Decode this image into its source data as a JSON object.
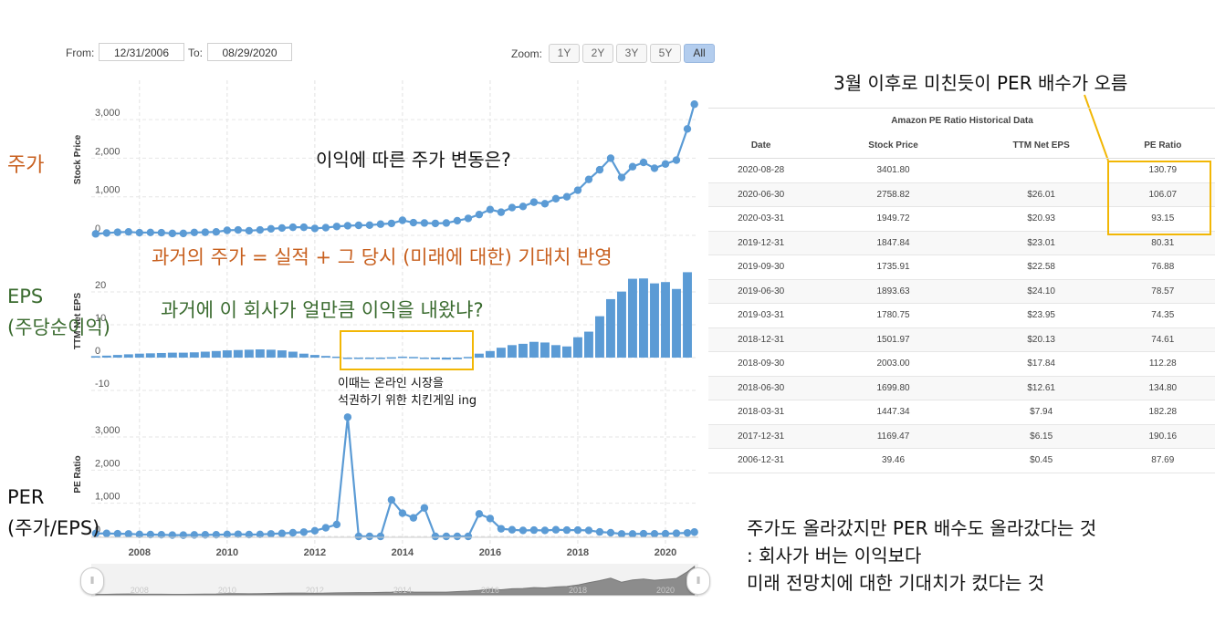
{
  "toolbar": {
    "from_label": "From:",
    "from_value": "12/31/2006",
    "to_label": "To:",
    "to_value": "08/29/2020",
    "zoom_label": "Zoom:",
    "zoom_buttons": [
      "1Y",
      "2Y",
      "3Y",
      "5Y",
      "All"
    ],
    "zoom_active": "All"
  },
  "annotations": {
    "left_price": "주가",
    "left_eps_1": "EPS",
    "left_eps_2": "(주당순이익)",
    "left_per_1": "PER",
    "left_per_2": "(주가/EPS)",
    "price_question": "이익에 따른 주가 변동은?",
    "past_price": "과거의 주가 = 실적 + 그 당시 (미래에 대한) 기대치 반영",
    "eps_question": "과거에 이 회사가 얼만큼 이익을 내왔냐?",
    "eps_note_1": "이때는 온라인 시장을",
    "eps_note_2": "석권하기 위한 치킨게임 ing",
    "per_note": "3월 이후로 미친듯이 PER 배수가 오름",
    "conclusion_1": "주가도 올라갔지만 PER 배수도 올라갔다는 것",
    "conclusion_2": ": 회사가 버는 이익보다",
    "conclusion_3": "미래 전망치에 대한 기대치가 컸다는 것"
  },
  "colors": {
    "series": "#5b9bd5",
    "highlight": "#f2b705",
    "annot_orange": "#c8601f",
    "annot_green": "#3a6b2f"
  },
  "table": {
    "title": "Amazon PE Ratio Historical Data",
    "columns": [
      "Date",
      "Stock Price",
      "TTM Net EPS",
      "PE Ratio"
    ],
    "rows": [
      [
        "2020-08-28",
        "3401.80",
        "",
        "130.79"
      ],
      [
        "2020-06-30",
        "2758.82",
        "$26.01",
        "106.07"
      ],
      [
        "2020-03-31",
        "1949.72",
        "$20.93",
        "93.15"
      ],
      [
        "2019-12-31",
        "1847.84",
        "$23.01",
        "80.31"
      ],
      [
        "2019-09-30",
        "1735.91",
        "$22.58",
        "76.88"
      ],
      [
        "2019-06-30",
        "1893.63",
        "$24.10",
        "78.57"
      ],
      [
        "2019-03-31",
        "1780.75",
        "$23.95",
        "74.35"
      ],
      [
        "2018-12-31",
        "1501.97",
        "$20.13",
        "74.61"
      ],
      [
        "2018-09-30",
        "2003.00",
        "$17.84",
        "112.28"
      ],
      [
        "2018-06-30",
        "1699.80",
        "$12.61",
        "134.80"
      ],
      [
        "2018-03-31",
        "1447.34",
        "$7.94",
        "182.28"
      ],
      [
        "2017-12-31",
        "1169.47",
        "$6.15",
        "190.16"
      ],
      [
        "2006-12-31",
        "39.46",
        "$0.45",
        "87.69"
      ]
    ]
  },
  "chart_data": [
    {
      "type": "line",
      "ylabel": "Stock Price",
      "ylim": [
        0,
        3500
      ],
      "yticks": [
        "0",
        "1,000",
        "2,000",
        "3,000"
      ],
      "x": [
        2007.0,
        2007.25,
        2007.5,
        2007.75,
        2008.0,
        2008.25,
        2008.5,
        2008.75,
        2009.0,
        2009.25,
        2009.5,
        2009.75,
        2010.0,
        2010.25,
        2010.5,
        2010.75,
        2011.0,
        2011.25,
        2011.5,
        2011.75,
        2012.0,
        2012.25,
        2012.5,
        2012.75,
        2013.0,
        2013.25,
        2013.5,
        2013.75,
        2014.0,
        2014.25,
        2014.5,
        2014.75,
        2015.0,
        2015.25,
        2015.5,
        2015.75,
        2016.0,
        2016.25,
        2016.5,
        2016.75,
        2017.0,
        2017.25,
        2017.5,
        2017.75,
        2018.0,
        2018.25,
        2018.5,
        2018.75,
        2019.0,
        2019.25,
        2019.5,
        2019.75,
        2020.0,
        2020.25,
        2020.5,
        2020.66
      ],
      "values": [
        39,
        60,
        80,
        90,
        70,
        75,
        70,
        50,
        50,
        75,
        80,
        90,
        130,
        140,
        120,
        140,
        170,
        190,
        210,
        210,
        180,
        200,
        230,
        250,
        260,
        265,
        290,
        310,
        390,
        330,
        320,
        310,
        320,
        380,
        440,
        540,
        670,
        600,
        720,
        750,
        860,
        820,
        950,
        1000,
        1170,
        1450,
        1700,
        2000,
        1500,
        1780,
        1890,
        1740,
        1850,
        1950,
        2760,
        3400
      ]
    },
    {
      "type": "bar",
      "ylabel": "TTM Net EPS",
      "ylim": [
        -10,
        30
      ],
      "yticks": [
        "-10",
        "0",
        "10",
        "20"
      ],
      "x": [
        2007.0,
        2007.25,
        2007.5,
        2007.75,
        2008.0,
        2008.25,
        2008.5,
        2008.75,
        2009.0,
        2009.25,
        2009.5,
        2009.75,
        2010.0,
        2010.25,
        2010.5,
        2010.75,
        2011.0,
        2011.25,
        2011.5,
        2011.75,
        2012.0,
        2012.25,
        2012.5,
        2012.75,
        2013.0,
        2013.25,
        2013.5,
        2013.75,
        2014.0,
        2014.25,
        2014.5,
        2014.75,
        2015.0,
        2015.25,
        2015.5,
        2015.75,
        2016.0,
        2016.25,
        2016.5,
        2016.75,
        2017.0,
        2017.25,
        2017.5,
        2017.75,
        2018.0,
        2018.25,
        2018.5,
        2018.75,
        2019.0,
        2019.25,
        2019.5,
        2019.75,
        2020.0,
        2020.25,
        2020.5
      ],
      "values": [
        0.45,
        0.6,
        0.8,
        1.0,
        1.2,
        1.3,
        1.4,
        1.5,
        1.5,
        1.6,
        1.8,
        2.0,
        2.2,
        2.3,
        2.4,
        2.5,
        2.4,
        2.2,
        1.8,
        1.2,
        0.8,
        0.5,
        0.3,
        -0.1,
        -0.2,
        -0.3,
        -0.2,
        0.1,
        0.3,
        0.2,
        -0.3,
        -0.5,
        -0.6,
        -0.5,
        0.2,
        1.2,
        2.0,
        3.0,
        3.8,
        4.2,
        4.8,
        4.6,
        3.8,
        3.4,
        6.2,
        7.9,
        12.6,
        17.8,
        20.1,
        24.0,
        24.1,
        22.6,
        23.0,
        20.9,
        26.0
      ]
    },
    {
      "type": "line",
      "ylabel": "PE Ratio",
      "ylim": [
        0,
        3800
      ],
      "yticks": [
        "0",
        "1,000",
        "2,000",
        "3,000"
      ],
      "x": [
        2007.0,
        2007.25,
        2007.5,
        2007.75,
        2008.0,
        2008.25,
        2008.5,
        2008.75,
        2009.0,
        2009.25,
        2009.5,
        2009.75,
        2010.0,
        2010.25,
        2010.5,
        2010.75,
        2011.0,
        2011.25,
        2011.5,
        2011.75,
        2012.0,
        2012.25,
        2012.5,
        2012.75,
        2013.0,
        2013.25,
        2013.5,
        2013.75,
        2014.0,
        2014.25,
        2014.5,
        2014.75,
        2015.0,
        2015.25,
        2015.5,
        2015.75,
        2016.0,
        2016.25,
        2016.5,
        2016.75,
        2017.0,
        2017.25,
        2017.5,
        2017.75,
        2018.0,
        2018.25,
        2018.5,
        2018.75,
        2019.0,
        2019.25,
        2019.5,
        2019.75,
        2020.0,
        2020.25,
        2020.5,
        2020.66
      ],
      "values": [
        88,
        90,
        80,
        75,
        60,
        55,
        50,
        40,
        38,
        45,
        48,
        50,
        60,
        65,
        55,
        60,
        75,
        90,
        110,
        130,
        170,
        260,
        360,
        3600,
        0,
        0,
        0,
        1100,
        700,
        560,
        860,
        0,
        0,
        0,
        0,
        680,
        540,
        230,
        200,
        180,
        190,
        180,
        200,
        190,
        190,
        180,
        135,
        112,
        75,
        74,
        79,
        77,
        80,
        93,
        106,
        131
      ]
    }
  ]
}
